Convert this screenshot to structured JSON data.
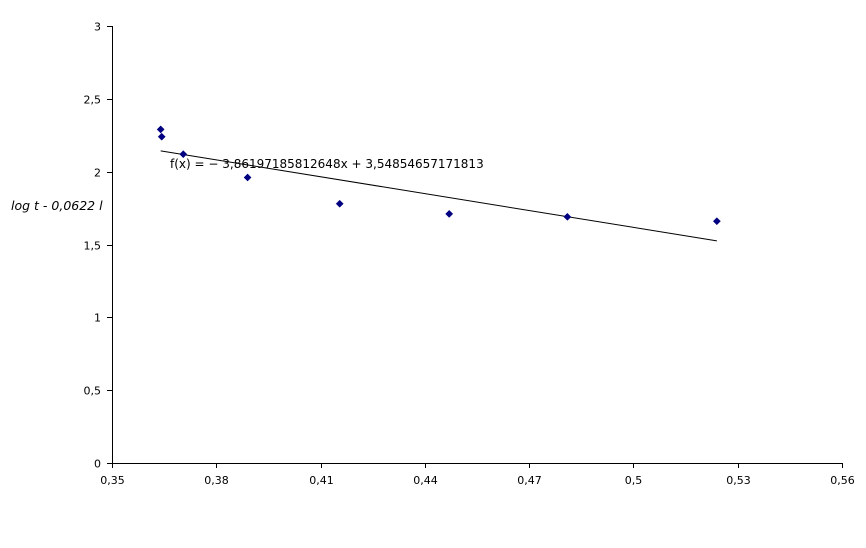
{
  "chart_data": {
    "type": "scatter",
    "title": "",
    "xlabel": "",
    "ylabel": "log t - 0,0622 l",
    "xlim": [
      0.35,
      0.56
    ],
    "ylim": [
      0,
      3
    ],
    "x_ticks": [
      0.35,
      0.38,
      0.41,
      0.44,
      0.47,
      0.5,
      0.53,
      0.56
    ],
    "x_tick_labels": [
      "0,35",
      "0,38",
      "0,41",
      "0,44",
      "0,47",
      "0,5",
      "0,53",
      "0,56"
    ],
    "y_ticks": [
      0,
      0.5,
      1,
      1.5,
      2,
      2.5,
      3
    ],
    "y_tick_labels": [
      "0",
      "0,5",
      "1",
      "1,5",
      "2",
      "2,5",
      "3"
    ],
    "grid": false,
    "legend": "none",
    "series": [
      {
        "color": "#000080",
        "marker": "diamond",
        "points": [
          {
            "x": 0.364,
            "y": 2.29
          },
          {
            "x": 0.3643,
            "y": 2.24
          },
          {
            "x": 0.3705,
            "y": 2.12
          },
          {
            "x": 0.389,
            "y": 1.96
          },
          {
            "x": 0.4155,
            "y": 1.78
          },
          {
            "x": 0.447,
            "y": 1.71
          },
          {
            "x": 0.481,
            "y": 1.69
          },
          {
            "x": 0.524,
            "y": 1.66
          }
        ]
      }
    ],
    "trendline": {
      "color": "#000000",
      "equation": "f(x) = − 3,86197185812648x + 3,54854657171813",
      "slope": -3.86197185812648,
      "intercept": 3.54854657171813,
      "x_start": 0.364,
      "x_end": 0.524
    }
  }
}
